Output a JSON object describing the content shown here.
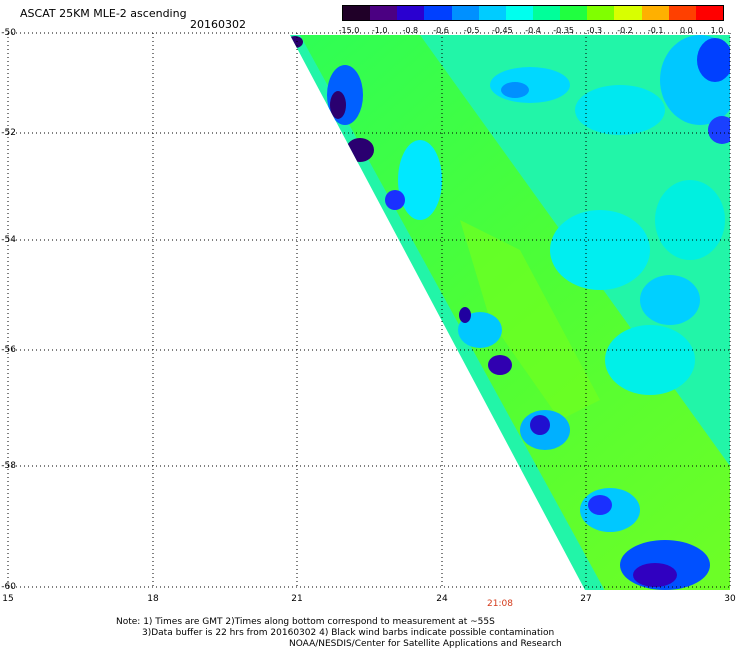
{
  "header": {
    "title": "ASCAT 25KM MLE-2 ascending",
    "date": "20160302"
  },
  "colorbar": {
    "labels": [
      "-15.0",
      "-1.0",
      "-0.8",
      "-0.6",
      "-0.5",
      "-0.45",
      "-0.4",
      "-0.35",
      "-0.3",
      "-0.2",
      "-0.1",
      "0.0",
      "1.0"
    ],
    "colors": [
      "#200028",
      "#4b0082",
      "#2a00d0",
      "#0040ff",
      "#0090ff",
      "#00ccff",
      "#00ffee",
      "#00ff9a",
      "#20ff40",
      "#80ff00",
      "#d8ff00",
      "#ffb000",
      "#ff4000",
      "#ff0000"
    ]
  },
  "axes": {
    "y_ticks": [
      "-50",
      "-52",
      "-54",
      "-56",
      "-58",
      "-60"
    ],
    "x_ticks": [
      "15",
      "18",
      "21",
      "24",
      "27",
      "30"
    ]
  },
  "time_label": "21:08",
  "notes": {
    "line1": "Note: 1) Times are GMT 2)Times along bottom correspond to measurement at ~55S",
    "line2": "3)Data buffer is 22 hrs from 20160302 4) Black wind barbs indicate possible contamination",
    "line3": "NOAA/NESDIS/Center for Satellite Applications and Research"
  }
}
